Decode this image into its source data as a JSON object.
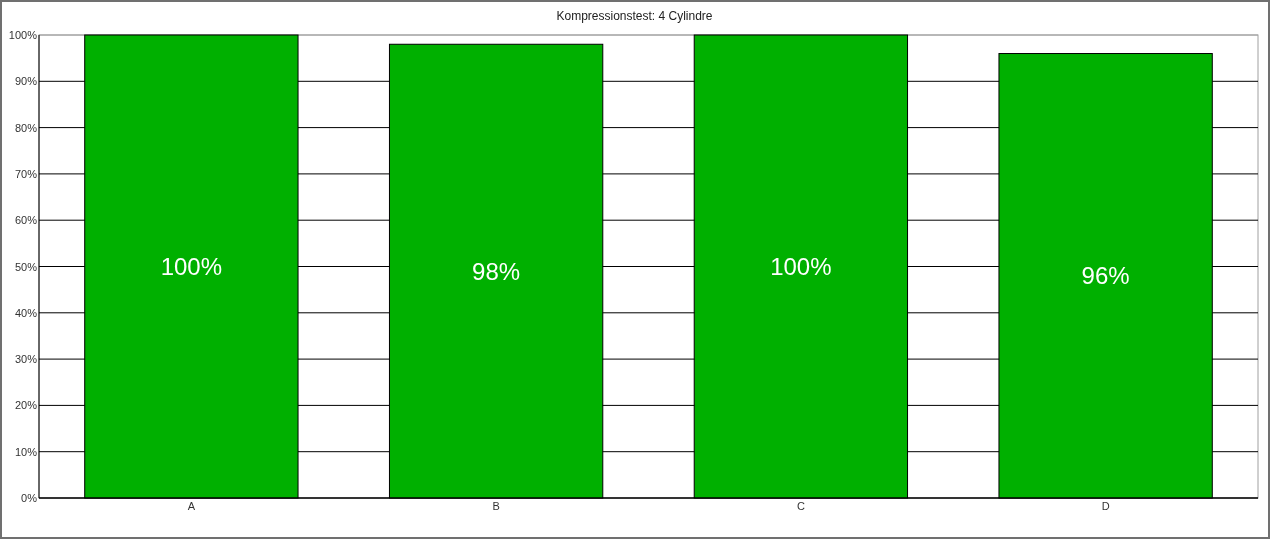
{
  "chart_data": {
    "type": "bar",
    "title": "Kompressionstest: 4 Cylindre",
    "categories": [
      "A",
      "B",
      "C",
      "D"
    ],
    "values": [
      100,
      98,
      100,
      96
    ],
    "color": "#00b000",
    "value_labels": [
      "100%",
      "98%",
      "100%",
      "96%"
    ],
    "ylim": [
      0,
      100
    ],
    "yticks": [
      {
        "value": 0,
        "label": "0%"
      },
      {
        "value": 10,
        "label": "10%"
      },
      {
        "value": 20,
        "label": "20%"
      },
      {
        "value": 30,
        "label": "30%"
      },
      {
        "value": 40,
        "label": "40%"
      },
      {
        "value": 50,
        "label": "50%"
      },
      {
        "value": 60,
        "label": "60%"
      },
      {
        "value": 70,
        "label": "70%"
      },
      {
        "value": 80,
        "label": "80%"
      },
      {
        "value": 90,
        "label": "90%"
      },
      {
        "value": 100,
        "label": "100%"
      }
    ],
    "grid": "y"
  }
}
